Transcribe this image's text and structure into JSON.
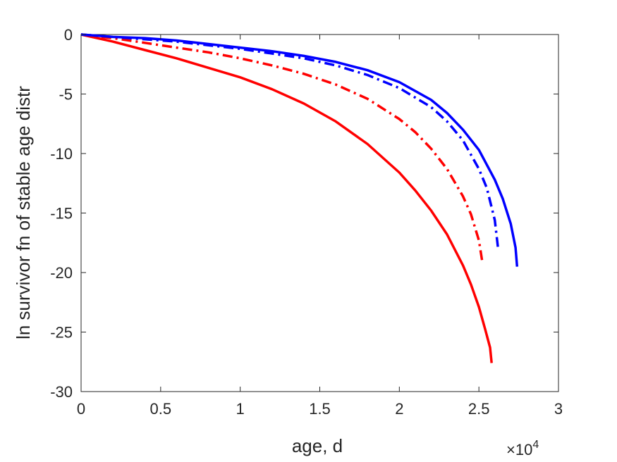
{
  "chart_data": {
    "type": "line",
    "xlabel": "age, d",
    "ylabel": "ln survivor fn of stable age distr",
    "x_multiplier_label": "×10",
    "x_multiplier_exponent": "4",
    "xlim": [
      0,
      30000
    ],
    "ylim": [
      -30,
      0
    ],
    "xticks": [
      0,
      5000,
      10000,
      15000,
      20000,
      25000,
      30000
    ],
    "xtick_labels": [
      "0",
      "0.5",
      "1",
      "1.5",
      "2",
      "2.5",
      "3"
    ],
    "yticks": [
      0,
      -5,
      -10,
      -15,
      -20,
      -25,
      -30
    ],
    "ytick_labels": [
      "0",
      "-5",
      "-10",
      "-15",
      "-20",
      "-25",
      "-30"
    ],
    "grid": false,
    "series": [
      {
        "color": "#ff0000",
        "style": "solid",
        "x": [
          0,
          2000,
          4000,
          6000,
          8000,
          10000,
          12000,
          14000,
          16000,
          18000,
          20000,
          21000,
          22000,
          23000,
          24000,
          24500,
          25000,
          25400,
          25700,
          25800
        ],
        "y": [
          0,
          -0.6,
          -1.3,
          -2.0,
          -2.8,
          -3.6,
          -4.6,
          -5.8,
          -7.3,
          -9.2,
          -11.6,
          -13.1,
          -14.8,
          -16.8,
          -19.4,
          -21.0,
          -22.9,
          -24.8,
          -26.3,
          -27.6
        ]
      },
      {
        "color": "#ff0000",
        "style": "dashdot",
        "x": [
          0,
          2000,
          4000,
          6000,
          8000,
          10000,
          12000,
          14000,
          16000,
          18000,
          20000,
          21000,
          22000,
          23000,
          24000,
          24500,
          25000,
          25200
        ],
        "y": [
          0,
          -0.3,
          -0.7,
          -1.1,
          -1.5,
          -2.0,
          -2.6,
          -3.3,
          -4.2,
          -5.4,
          -7.1,
          -8.2,
          -9.6,
          -11.3,
          -13.6,
          -15.1,
          -17.3,
          -19.0
        ]
      },
      {
        "color": "#0000ff",
        "style": "dashdot",
        "x": [
          0,
          2000,
          4000,
          6000,
          8000,
          10000,
          12000,
          14000,
          16000,
          18000,
          20000,
          22000,
          23000,
          24000,
          25000,
          25500,
          26000,
          26200
        ],
        "y": [
          0,
          -0.2,
          -0.4,
          -0.6,
          -0.9,
          -1.2,
          -1.6,
          -2.0,
          -2.6,
          -3.4,
          -4.5,
          -6.1,
          -7.3,
          -8.9,
          -11.3,
          -12.9,
          -15.6,
          -17.9
        ]
      },
      {
        "color": "#0000ff",
        "style": "solid",
        "x": [
          0,
          2000,
          4000,
          6000,
          8000,
          10000,
          12000,
          14000,
          16000,
          18000,
          20000,
          22000,
          23000,
          24000,
          25000,
          26000,
          26500,
          27000,
          27300,
          27400
        ],
        "y": [
          0,
          -0.2,
          -0.3,
          -0.5,
          -0.8,
          -1.1,
          -1.4,
          -1.8,
          -2.3,
          -3.0,
          -4.0,
          -5.5,
          -6.6,
          -8.0,
          -9.7,
          -12.2,
          -13.8,
          -15.9,
          -17.9,
          -19.5
        ]
      }
    ]
  }
}
